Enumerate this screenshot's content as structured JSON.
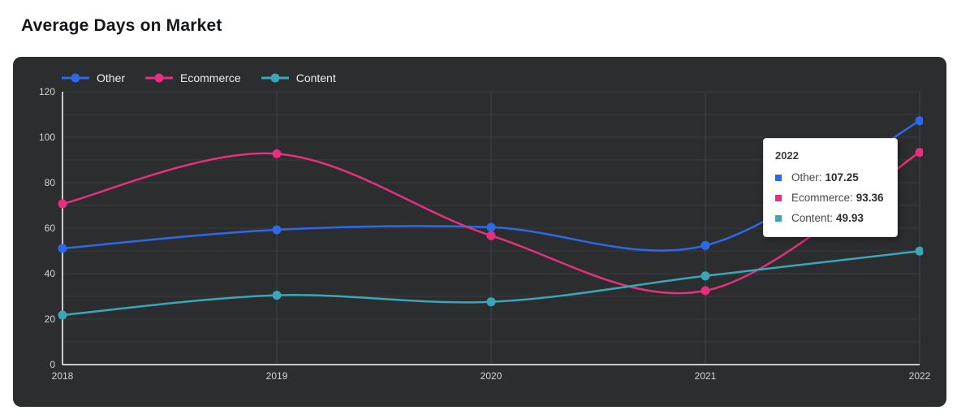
{
  "page": {
    "title": "Average Days on Market"
  },
  "colors": {
    "card_background": "#2c2d2f",
    "h_gridline": "#3a3b3d",
    "v_gridline": "#404247",
    "axis_line": "#ffffff",
    "tick_text": "#d4d4d4",
    "legend_text": "#ededed"
  },
  "chart_data": {
    "type": "line",
    "x": [
      "2018",
      "2019",
      "2020",
      "2021",
      "2022"
    ],
    "series": [
      {
        "name": "Other",
        "color": "#2b69e9",
        "values": [
          51.1,
          59.3,
          60.4,
          52.4,
          107.25
        ]
      },
      {
        "name": "Ecommerce",
        "color": "#e5307f",
        "values": [
          70.7,
          92.7,
          56.7,
          32.5,
          93.36
        ]
      },
      {
        "name": "Content",
        "color": "#3aa7b8",
        "values": [
          21.8,
          30.5,
          27.6,
          39.0,
          49.93
        ]
      }
    ],
    "title": "Average Days on Market",
    "xlabel": "",
    "ylabel": "",
    "ylim": [
      0,
      120
    ],
    "ytick_step": 20,
    "grid_step": 10,
    "grid": true,
    "legend_position": "top-left",
    "marker": "circle",
    "smooth": true
  },
  "tooltip": {
    "title": "2022",
    "rows": [
      {
        "label": "Other:",
        "value": "107.25",
        "color": "#2b69e9"
      },
      {
        "label": "Ecommerce:",
        "value": "93.36",
        "color": "#e5307f"
      },
      {
        "label": "Content:",
        "value": "49.93",
        "color": "#3aa7b8"
      }
    ]
  }
}
